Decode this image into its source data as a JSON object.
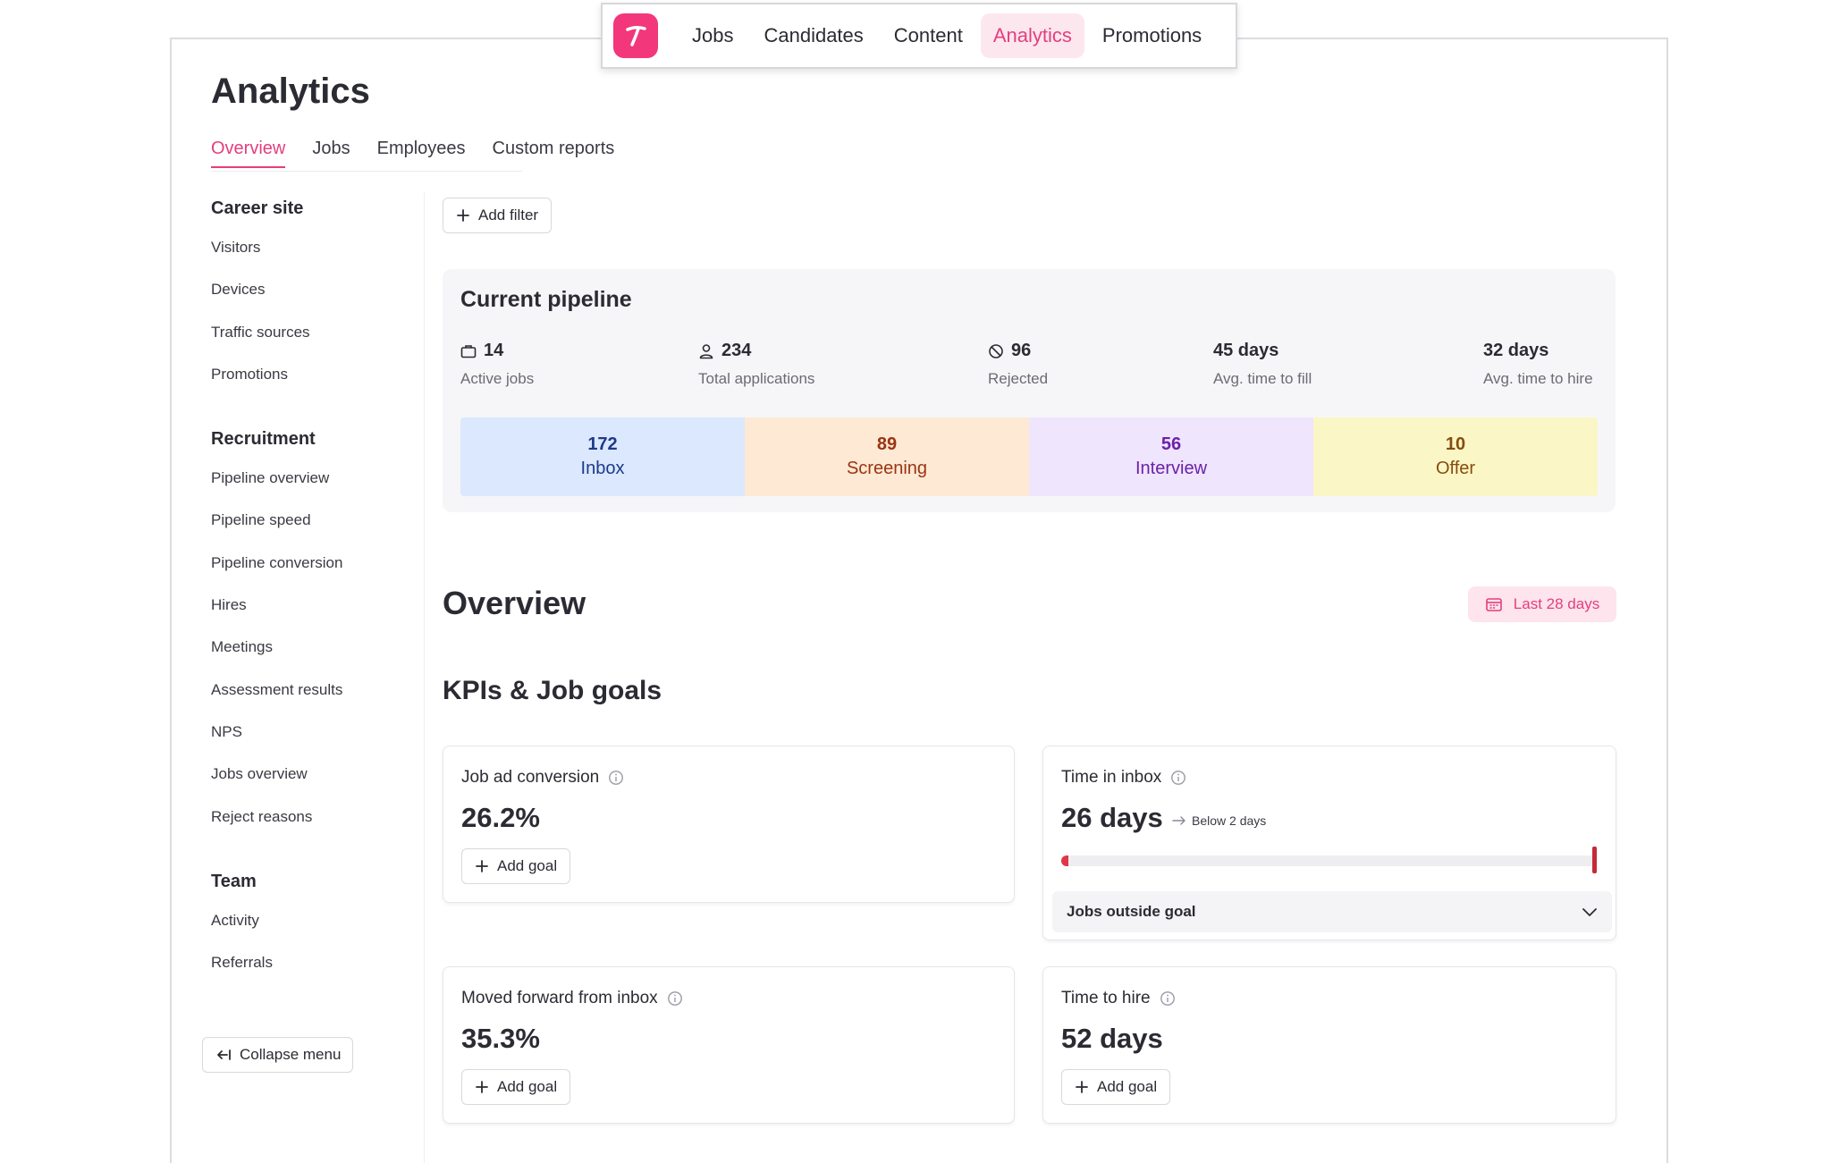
{
  "topnav": {
    "items": [
      {
        "label": "Jobs",
        "active": false
      },
      {
        "label": "Candidates",
        "active": false
      },
      {
        "label": "Content",
        "active": false
      },
      {
        "label": "Analytics",
        "active": true
      },
      {
        "label": "Promotions",
        "active": false
      }
    ]
  },
  "page": {
    "title": "Analytics"
  },
  "tabs": [
    {
      "label": "Overview",
      "active": true
    },
    {
      "label": "Jobs",
      "active": false
    },
    {
      "label": "Employees",
      "active": false
    },
    {
      "label": "Custom reports",
      "active": false
    }
  ],
  "sidebar": {
    "groups": [
      {
        "heading": "Career site",
        "items": [
          "Visitors",
          "Devices",
          "Traffic sources",
          "Promotions"
        ]
      },
      {
        "heading": "Recruitment",
        "items": [
          "Pipeline overview",
          "Pipeline speed",
          "Pipeline conversion",
          "Hires",
          "Meetings",
          "Assessment results",
          "NPS",
          "Jobs overview",
          "Reject reasons"
        ]
      },
      {
        "heading": "Team",
        "items": [
          "Activity",
          "Referrals"
        ]
      }
    ],
    "collapse_label": "Collapse menu"
  },
  "filters": {
    "add_label": "Add filter"
  },
  "pipeline": {
    "title": "Current pipeline",
    "stats": [
      {
        "icon": "briefcase-icon",
        "value": "14",
        "label": "Active jobs"
      },
      {
        "icon": "user-icon",
        "value": "234",
        "label": "Total applications"
      },
      {
        "icon": "ban-icon",
        "value": "96",
        "label": "Rejected"
      },
      {
        "icon": "",
        "value": "45 days",
        "label": "Avg. time to fill"
      },
      {
        "icon": "",
        "value": "32 days",
        "label": "Avg. time to hire"
      }
    ],
    "stages": [
      {
        "count": "172",
        "label": "Inbox",
        "bg": "#dbe8fd",
        "color": "#1e3a8a"
      },
      {
        "count": "89",
        "label": "Screening",
        "bg": "#fde9d4",
        "color": "#9a3412"
      },
      {
        "count": "56",
        "label": "Interview",
        "bg": "#efe5fd",
        "color": "#6b21a8"
      },
      {
        "count": "10",
        "label": "Offer",
        "bg": "#fbf6c6",
        "color": "#854d0e"
      }
    ]
  },
  "overview": {
    "title": "Overview",
    "date_range": "Last 28 days"
  },
  "kpis": {
    "title": "KPIs & Job goals",
    "add_goal_label": "Add goal",
    "job_ad_conversion": {
      "title": "Job ad conversion",
      "value": "26.2%"
    },
    "time_in_inbox": {
      "title": "Time in inbox",
      "value": "26 days",
      "goal_note": "Below 2 days",
      "progress": 0.01,
      "jobs_outside_label": "Jobs outside goal"
    },
    "moved_forward": {
      "title": "Moved forward from inbox",
      "value": "35.3%"
    },
    "time_to_hire": {
      "title": "Time to hire",
      "value": "52 days"
    }
  },
  "colors": {
    "accent": "#e43f7c",
    "logo": "#f2377a",
    "danger": "#e0364a"
  }
}
